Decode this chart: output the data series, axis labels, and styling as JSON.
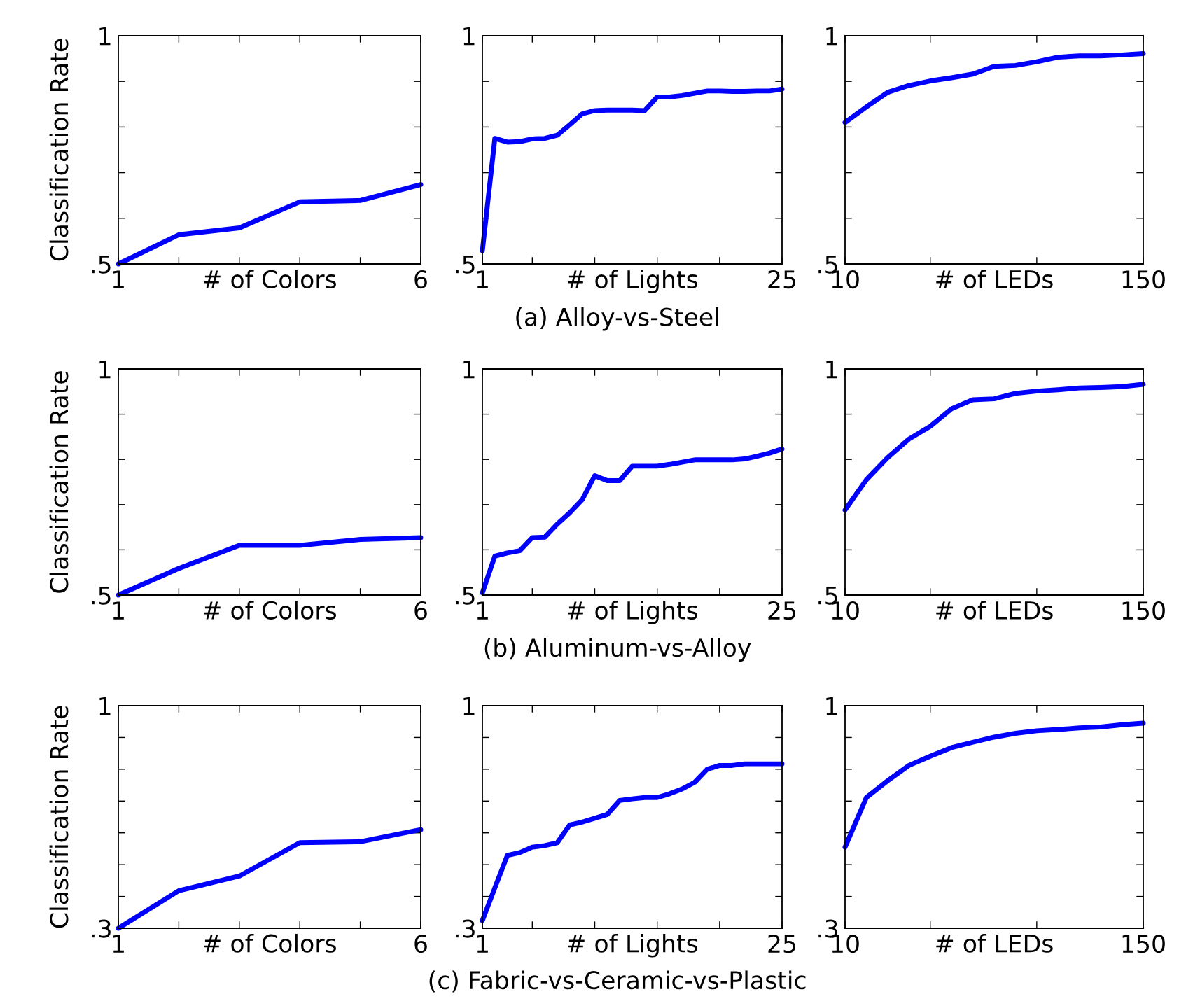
{
  "chart_data": [
    {
      "type": "line",
      "xlabel": "# of Colors",
      "ylabel": "Classification Rate",
      "x": [
        1,
        2,
        3,
        4,
        5,
        6
      ],
      "series": [
        {
          "color": "#0000ff",
          "values": [
            0.5,
            0.564,
            0.579,
            0.636,
            0.639,
            0.674
          ]
        }
      ],
      "xlim": [
        1,
        6
      ],
      "ylim": [
        0.5,
        1
      ],
      "xticks": [
        1,
        {
          "value": 2,
          "label": null
        },
        {
          "value": 3,
          "label": null
        },
        {
          "value": 4,
          "label": null
        },
        {
          "value": 5,
          "label": null
        },
        6
      ],
      "yticks": [
        {
          "value": 0.5,
          "label": ".5"
        },
        {
          "value": 0.6,
          "label": null
        },
        {
          "value": 0.7,
          "label": null
        },
        {
          "value": 0.8,
          "label": null
        },
        {
          "value": 0.9,
          "label": null
        },
        1
      ],
      "grid": false,
      "legend": false
    },
    {
      "type": "line",
      "xlabel": "# of Lights",
      "x": [
        1,
        2,
        3,
        4,
        5,
        6,
        7,
        8,
        9,
        10,
        11,
        12,
        13,
        14,
        15,
        16,
        17,
        18,
        19,
        20,
        21,
        22,
        23,
        24,
        25
      ],
      "series": [
        {
          "color": "#0000ff",
          "values": [
            0.529,
            0.775,
            0.767,
            0.768,
            0.774,
            0.775,
            0.782,
            0.805,
            0.829,
            0.836,
            0.837,
            0.837,
            0.837,
            0.836,
            0.866,
            0.866,
            0.869,
            0.874,
            0.879,
            0.879,
            0.878,
            0.878,
            0.879,
            0.879,
            0.883
          ]
        }
      ],
      "xlim": [
        1,
        25
      ],
      "ylim": [
        0.5,
        1
      ],
      "xticks": [
        1,
        {
          "value": 5,
          "label": null
        },
        {
          "value": 10,
          "label": null
        },
        {
          "value": 15,
          "label": null
        },
        {
          "value": 20,
          "label": null
        },
        25
      ],
      "yticks": [
        {
          "value": 0.5,
          "label": ".5"
        },
        {
          "value": 0.6,
          "label": null
        },
        {
          "value": 0.7,
          "label": null
        },
        {
          "value": 0.8,
          "label": null
        },
        {
          "value": 0.9,
          "label": null
        },
        1
      ],
      "grid": false,
      "legend": false,
      "annotations": [
        "(a) Alloy-vs-Steel"
      ]
    },
    {
      "type": "line",
      "xlabel": "# of LEDs",
      "x": [
        10,
        20,
        30,
        40,
        50,
        60,
        70,
        80,
        90,
        100,
        110,
        120,
        130,
        140,
        150
      ],
      "series": [
        {
          "color": "#0000ff",
          "values": [
            0.81,
            0.844,
            0.876,
            0.891,
            0.901,
            0.908,
            0.916,
            0.933,
            0.935,
            0.943,
            0.953,
            0.956,
            0.956,
            0.958,
            0.961
          ]
        }
      ],
      "xlim": [
        10,
        150
      ],
      "ylim": [
        0.5,
        1
      ],
      "xticks": [
        10,
        {
          "value": 50,
          "label": null
        },
        {
          "value": 100,
          "label": null
        },
        150
      ],
      "yticks": [
        {
          "value": 0.5,
          "label": ".5"
        },
        {
          "value": 0.6,
          "label": null
        },
        {
          "value": 0.7,
          "label": null
        },
        {
          "value": 0.8,
          "label": null
        },
        {
          "value": 0.9,
          "label": null
        },
        1
      ],
      "grid": false,
      "legend": false
    },
    {
      "type": "line",
      "xlabel": "# of Colors",
      "ylabel": "Classification Rate",
      "x": [
        1,
        2,
        3,
        4,
        5,
        6
      ],
      "series": [
        {
          "color": "#0000ff",
          "values": [
            0.5,
            0.559,
            0.61,
            0.61,
            0.623,
            0.627
          ]
        }
      ],
      "xlim": [
        1,
        6
      ],
      "ylim": [
        0.5,
        1
      ],
      "xticks": [
        1,
        {
          "value": 2,
          "label": null
        },
        {
          "value": 3,
          "label": null
        },
        {
          "value": 4,
          "label": null
        },
        {
          "value": 5,
          "label": null
        },
        6
      ],
      "yticks": [
        {
          "value": 0.5,
          "label": ".5"
        },
        {
          "value": 0.6,
          "label": null
        },
        {
          "value": 0.7,
          "label": null
        },
        {
          "value": 0.8,
          "label": null
        },
        {
          "value": 0.9,
          "label": null
        },
        1
      ],
      "grid": false,
      "legend": false
    },
    {
      "type": "line",
      "xlabel": "# of Lights",
      "x": [
        1,
        2,
        3,
        4,
        5,
        6,
        7,
        8,
        9,
        10,
        11,
        12,
        13,
        14,
        15,
        16,
        17,
        18,
        19,
        20,
        21,
        22,
        23,
        24,
        25
      ],
      "series": [
        {
          "color": "#0000ff",
          "values": [
            0.505,
            0.586,
            0.593,
            0.598,
            0.627,
            0.628,
            0.657,
            0.682,
            0.711,
            0.764,
            0.753,
            0.753,
            0.785,
            0.785,
            0.785,
            0.789,
            0.794,
            0.799,
            0.799,
            0.799,
            0.799,
            0.801,
            0.807,
            0.814,
            0.823
          ]
        }
      ],
      "xlim": [
        1,
        25
      ],
      "ylim": [
        0.5,
        1
      ],
      "xticks": [
        1,
        {
          "value": 5,
          "label": null
        },
        {
          "value": 10,
          "label": null
        },
        {
          "value": 15,
          "label": null
        },
        {
          "value": 20,
          "label": null
        },
        25
      ],
      "yticks": [
        {
          "value": 0.5,
          "label": ".5"
        },
        {
          "value": 0.6,
          "label": null
        },
        {
          "value": 0.7,
          "label": null
        },
        {
          "value": 0.8,
          "label": null
        },
        {
          "value": 0.9,
          "label": null
        },
        1
      ],
      "grid": false,
      "legend": false,
      "annotations": [
        "(b) Aluminum-vs-Alloy"
      ]
    },
    {
      "type": "line",
      "xlabel": "# of LEDs",
      "x": [
        10,
        20,
        30,
        40,
        50,
        60,
        70,
        80,
        90,
        100,
        110,
        120,
        130,
        140,
        150
      ],
      "series": [
        {
          "color": "#0000ff",
          "values": [
            0.688,
            0.755,
            0.804,
            0.845,
            0.873,
            0.912,
            0.932,
            0.934,
            0.946,
            0.951,
            0.954,
            0.958,
            0.959,
            0.961,
            0.966
          ]
        }
      ],
      "xlim": [
        10,
        150
      ],
      "ylim": [
        0.5,
        1
      ],
      "xticks": [
        10,
        {
          "value": 50,
          "label": null
        },
        {
          "value": 100,
          "label": null
        },
        150
      ],
      "yticks": [
        {
          "value": 0.5,
          "label": ".5"
        },
        {
          "value": 0.6,
          "label": null
        },
        {
          "value": 0.7,
          "label": null
        },
        {
          "value": 0.8,
          "label": null
        },
        {
          "value": 0.9,
          "label": null
        },
        1
      ],
      "grid": false,
      "legend": false
    },
    {
      "type": "line",
      "xlabel": "# of Colors",
      "ylabel": "Classification Rate",
      "x": [
        1,
        2,
        3,
        4,
        5,
        6
      ],
      "series": [
        {
          "color": "#0000ff",
          "values": [
            0.3,
            0.418,
            0.464,
            0.569,
            0.572,
            0.61
          ]
        }
      ],
      "xlim": [
        1,
        6
      ],
      "ylim": [
        0.3,
        1
      ],
      "xticks": [
        1,
        {
          "value": 2,
          "label": null
        },
        {
          "value": 3,
          "label": null
        },
        {
          "value": 4,
          "label": null
        },
        {
          "value": 5,
          "label": null
        },
        6
      ],
      "yticks": [
        {
          "value": 0.3,
          "label": ".3"
        },
        {
          "value": 0.4,
          "label": null
        },
        {
          "value": 0.5,
          "label": null
        },
        {
          "value": 0.6,
          "label": null
        },
        {
          "value": 0.7,
          "label": null
        },
        {
          "value": 0.8,
          "label": null
        },
        {
          "value": 0.9,
          "label": null
        },
        1
      ],
      "grid": false,
      "legend": false
    },
    {
      "type": "line",
      "xlabel": "# of Lights",
      "x": [
        1,
        2,
        3,
        4,
        5,
        6,
        7,
        8,
        9,
        10,
        11,
        12,
        13,
        14,
        15,
        16,
        17,
        18,
        19,
        20,
        21,
        22,
        23,
        24,
        25
      ],
      "series": [
        {
          "color": "#0000ff",
          "values": [
            0.324,
            0.427,
            0.529,
            0.538,
            0.555,
            0.56,
            0.569,
            0.625,
            0.634,
            0.646,
            0.658,
            0.702,
            0.707,
            0.711,
            0.711,
            0.723,
            0.738,
            0.759,
            0.8,
            0.812,
            0.812,
            0.817,
            0.817,
            0.817,
            0.817
          ]
        }
      ],
      "xlim": [
        1,
        25
      ],
      "ylim": [
        0.3,
        1
      ],
      "xticks": [
        1,
        {
          "value": 5,
          "label": null
        },
        {
          "value": 10,
          "label": null
        },
        {
          "value": 15,
          "label": null
        },
        {
          "value": 20,
          "label": null
        },
        25
      ],
      "yticks": [
        {
          "value": 0.3,
          "label": ".3"
        },
        {
          "value": 0.4,
          "label": null
        },
        {
          "value": 0.5,
          "label": null
        },
        {
          "value": 0.6,
          "label": null
        },
        {
          "value": 0.7,
          "label": null
        },
        {
          "value": 0.8,
          "label": null
        },
        {
          "value": 0.9,
          "label": null
        },
        1
      ],
      "grid": false,
      "legend": false,
      "annotations": [
        "(c) Fabric-vs-Ceramic-vs-Plastic"
      ]
    },
    {
      "type": "line",
      "xlabel": "# of LEDs",
      "x": [
        10,
        20,
        30,
        40,
        50,
        60,
        70,
        80,
        90,
        100,
        110,
        120,
        130,
        140,
        150
      ],
      "series": [
        {
          "color": "#0000ff",
          "values": [
            0.555,
            0.711,
            0.764,
            0.812,
            0.841,
            0.868,
            0.885,
            0.901,
            0.913,
            0.921,
            0.925,
            0.93,
            0.933,
            0.94,
            0.945
          ]
        }
      ],
      "xlim": [
        10,
        150
      ],
      "ylim": [
        0.3,
        1
      ],
      "xticks": [
        10,
        {
          "value": 50,
          "label": null
        },
        {
          "value": 100,
          "label": null
        },
        150
      ],
      "yticks": [
        {
          "value": 0.3,
          "label": ".3"
        },
        {
          "value": 0.4,
          "label": null
        },
        {
          "value": 0.5,
          "label": null
        },
        {
          "value": 0.6,
          "label": null
        },
        {
          "value": 0.7,
          "label": null
        },
        {
          "value": 0.8,
          "label": null
        },
        {
          "value": 0.9,
          "label": null
        },
        1
      ],
      "grid": false,
      "legend": false
    }
  ]
}
